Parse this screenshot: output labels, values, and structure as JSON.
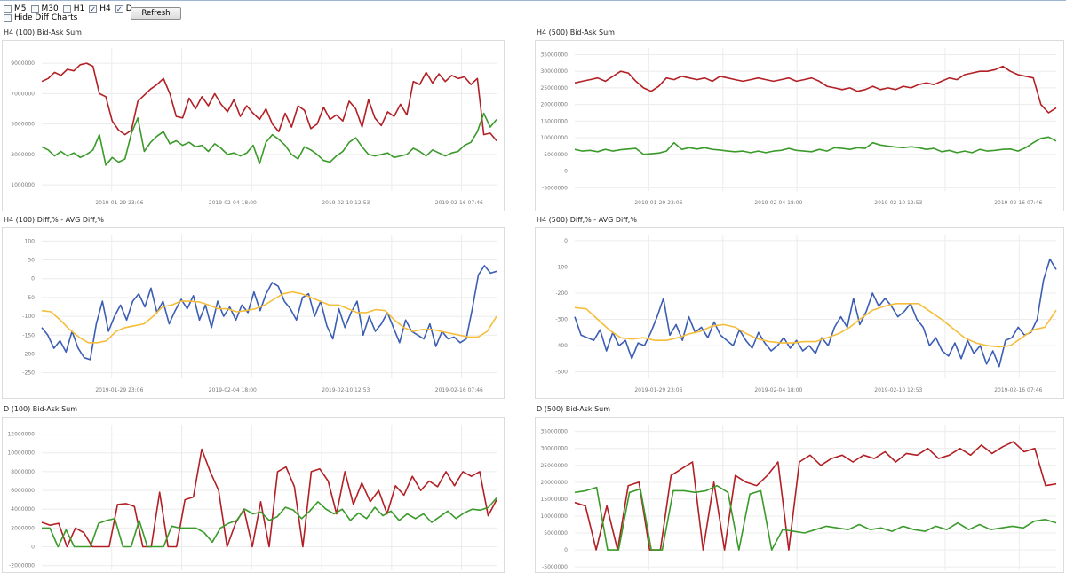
{
  "toolbar": {
    "checkboxes": [
      {
        "label": "M5",
        "checked": false
      },
      {
        "label": "M30",
        "checked": false
      },
      {
        "label": "H1",
        "checked": false
      },
      {
        "label": "H4",
        "checked": true
      },
      {
        "label": "D",
        "checked": true
      }
    ],
    "refresh_label": "Refresh",
    "hide_diff": {
      "label": "Hide Diff Charts",
      "checked": false
    }
  },
  "colors": {
    "ask": "#b21f24",
    "bid": "#3a9a2a",
    "diff": "#3b5db3",
    "avg": "#f5bd3a"
  },
  "chart_data": [
    {
      "title": "H4 (100) Bid-Ask Sum",
      "type": "line",
      "yticks": [
        9000000,
        7000000,
        5000000,
        3000000,
        1000000
      ],
      "ylim": [
        600000,
        10000000
      ],
      "xticks": [
        "2019-01-29 23:06",
        "2019-02-04 18:00",
        "2019-02-10 12:53",
        "2019-02-16 07:46"
      ],
      "series": [
        {
          "color": "#b21f24",
          "values": [
            7800000,
            8000000,
            8400000,
            8200000,
            8600000,
            8500000,
            8900000,
            9000000,
            8800000,
            7000000,
            6800000,
            5200000,
            4600000,
            4300000,
            4600000,
            6500000,
            6900000,
            7300000,
            7600000,
            8000000,
            7000000,
            5500000,
            5400000,
            6700000,
            6000000,
            6800000,
            6200000,
            7000000,
            6300000,
            5800000,
            6600000,
            5500000,
            6200000,
            5700000,
            5300000,
            6000000,
            5000000,
            4500000,
            5700000,
            4800000,
            6200000,
            5900000,
            4700000,
            5000000,
            6100000,
            5300000,
            5600000,
            5200000,
            6500000,
            6000000,
            4800000,
            6600000,
            5400000,
            4900000,
            5800000,
            5500000,
            6300000,
            5600000,
            7800000,
            7600000,
            8400000,
            7700000,
            8300000,
            7800000,
            8200000,
            8000000,
            8100000,
            7600000,
            8000000,
            4300000,
            4400000,
            3900000
          ]
        },
        {
          "color": "#3a9a2a",
          "values": [
            3500000,
            3300000,
            2900000,
            3200000,
            2900000,
            3100000,
            2800000,
            3000000,
            3300000,
            4300000,
            2300000,
            2800000,
            2500000,
            2700000,
            4400000,
            5400000,
            3200000,
            3800000,
            4200000,
            4500000,
            3700000,
            3900000,
            3600000,
            3800000,
            3500000,
            3600000,
            3200000,
            3700000,
            3400000,
            3000000,
            3100000,
            2900000,
            3100000,
            3600000,
            2400000,
            3800000,
            4300000,
            4000000,
            3600000,
            3000000,
            2700000,
            3500000,
            3300000,
            3000000,
            2600000,
            2500000,
            2900000,
            3200000,
            3800000,
            4100000,
            3500000,
            3000000,
            2900000,
            3000000,
            3100000,
            2800000,
            2900000,
            3000000,
            3400000,
            3200000,
            2900000,
            3300000,
            3100000,
            2900000,
            3100000,
            3200000,
            3600000,
            3800000,
            4500000,
            5700000,
            4800000,
            5300000
          ]
        }
      ]
    },
    {
      "title": "H4 (500) Bid-Ask Sum",
      "type": "line",
      "yticks": [
        35000000,
        30000000,
        25000000,
        20000000,
        15000000,
        10000000,
        5000000,
        0,
        -5000000
      ],
      "ylim": [
        -6000000,
        37000000
      ],
      "xticks": [
        "2019-01-29 23:06",
        "2019-02-04 18:00",
        "2019-02-10 12:53",
        "2019-02-16 07:46"
      ],
      "series": [
        {
          "color": "#b21f24",
          "values": [
            26500000,
            27000000,
            27500000,
            28000000,
            27000000,
            28500000,
            30000000,
            29500000,
            27000000,
            25000000,
            24000000,
            25500000,
            28000000,
            27500000,
            28500000,
            28000000,
            27500000,
            28000000,
            27000000,
            28500000,
            28000000,
            27500000,
            27000000,
            27500000,
            28000000,
            27500000,
            27000000,
            27500000,
            28000000,
            27000000,
            27500000,
            28000000,
            27000000,
            25500000,
            25000000,
            24500000,
            25000000,
            24000000,
            24500000,
            25500000,
            24500000,
            25000000,
            24500000,
            25500000,
            25000000,
            26000000,
            26500000,
            26000000,
            27000000,
            28000000,
            27500000,
            29000000,
            29500000,
            30000000,
            30000000,
            30500000,
            31500000,
            30000000,
            29000000,
            28500000,
            28000000,
            20000000,
            17500000,
            19000000
          ]
        },
        {
          "color": "#3a9a2a",
          "values": [
            6500000,
            6000000,
            6200000,
            5800000,
            6500000,
            6000000,
            6400000,
            6600000,
            6800000,
            5000000,
            5200000,
            5400000,
            6000000,
            8500000,
            6500000,
            7000000,
            6600000,
            7000000,
            6500000,
            6300000,
            6000000,
            5800000,
            6000000,
            5500000,
            6000000,
            5500000,
            6000000,
            6200000,
            6800000,
            6200000,
            6000000,
            5800000,
            6500000,
            6000000,
            7000000,
            6800000,
            6500000,
            7000000,
            6800000,
            8500000,
            7800000,
            7500000,
            7200000,
            7000000,
            7300000,
            7000000,
            6500000,
            6800000,
            5800000,
            6200000,
            5500000,
            6000000,
            5500000,
            6500000,
            6000000,
            6200000,
            6500000,
            6600000,
            6000000,
            7000000,
            8500000,
            9800000,
            10200000,
            9000000
          ]
        }
      ]
    },
    {
      "title": "H4 (100) Diff,% - AVG Diff,%",
      "type": "line",
      "yticks": [
        100,
        50,
        0,
        -50,
        -100,
        -150,
        -200,
        -250
      ],
      "ylim": [
        -265,
        115
      ],
      "xticks": [
        "2019-01-29 23:06",
        "2019-02-04 18:00",
        "2019-02-10 12:53",
        "2019-02-16 07:46"
      ],
      "series": [
        {
          "color": "#3b5db3",
          "values": [
            -130,
            -150,
            -185,
            -165,
            -195,
            -140,
            -185,
            -210,
            -215,
            -120,
            -60,
            -140,
            -100,
            -70,
            -110,
            -60,
            -40,
            -75,
            -25,
            -90,
            -60,
            -120,
            -85,
            -55,
            -80,
            -45,
            -110,
            -70,
            -130,
            -60,
            -100,
            -75,
            -110,
            -70,
            -90,
            -35,
            -85,
            -40,
            -10,
            -20,
            -60,
            -80,
            -110,
            -50,
            -40,
            -100,
            -60,
            -125,
            -160,
            -80,
            -130,
            -90,
            -60,
            -150,
            -100,
            -140,
            -120,
            -90,
            -130,
            -170,
            -110,
            -140,
            -150,
            -160,
            -120,
            -180,
            -140,
            -160,
            -155,
            -170,
            -160,
            -80,
            10,
            35,
            15,
            20
          ]
        },
        {
          "color": "#f5bd3a",
          "values": [
            -85,
            -88,
            -110,
            -135,
            -155,
            -170,
            -170,
            -165,
            -140,
            -130,
            -125,
            -120,
            -100,
            -75,
            -70,
            -60,
            -60,
            -62,
            -70,
            -80,
            -80,
            -88,
            -85,
            -80,
            -70,
            -55,
            -40,
            -35,
            -40,
            -50,
            -60,
            -70,
            -70,
            -80,
            -90,
            -90,
            -82,
            -85,
            -110,
            -130,
            -140,
            -135,
            -135,
            -140,
            -145,
            -150,
            -155,
            -155,
            -140,
            -100
          ]
        }
      ]
    },
    {
      "title": "H4 (500) Diff,% - AVG Diff,%",
      "type": "line",
      "yticks": [
        0,
        -100,
        -200,
        -300,
        -400,
        -500
      ],
      "ylim": [
        -525,
        20
      ],
      "xticks": [
        "2019-01-29 23:06",
        "2019-02-04 18:00",
        "2019-02-10 12:53",
        "2019-02-16 07:46"
      ],
      "series": [
        {
          "color": "#3b5db3",
          "values": [
            -290,
            -360,
            -370,
            -380,
            -340,
            -420,
            -350,
            -400,
            -380,
            -450,
            -390,
            -400,
            -350,
            -290,
            -220,
            -360,
            -320,
            -380,
            -290,
            -350,
            -330,
            -370,
            -310,
            -360,
            -380,
            -400,
            -340,
            -380,
            -410,
            -350,
            -390,
            -420,
            -400,
            -370,
            -410,
            -380,
            -420,
            -400,
            -430,
            -370,
            -400,
            -330,
            -290,
            -330,
            -220,
            -320,
            -270,
            -200,
            -250,
            -220,
            -250,
            -290,
            -270,
            -240,
            -300,
            -330,
            -400,
            -370,
            -420,
            -440,
            -390,
            -450,
            -380,
            -430,
            -400,
            -470,
            -420,
            -480,
            -380,
            -370,
            -330,
            -360,
            -350,
            -300,
            -150,
            -70,
            -110
          ]
        },
        {
          "color": "#f5bd3a",
          "values": [
            -255,
            -260,
            -300,
            -340,
            -370,
            -375,
            -370,
            -380,
            -380,
            -370,
            -355,
            -345,
            -325,
            -320,
            -330,
            -355,
            -375,
            -385,
            -390,
            -390,
            -385,
            -385,
            -370,
            -355,
            -330,
            -295,
            -265,
            -250,
            -240,
            -240,
            -240,
            -270,
            -300,
            -335,
            -370,
            -390,
            -400,
            -405,
            -400,
            -370,
            -340,
            -330,
            -265
          ]
        }
      ]
    },
    {
      "title": "D (100) Bid-Ask Sum",
      "type": "line",
      "yticks": [
        12000000,
        10000000,
        8000000,
        6000000,
        4000000,
        2000000,
        0,
        -2000000
      ],
      "ylim": [
        -2500000,
        13000000
      ],
      "xticks": [],
      "series": [
        {
          "color": "#b21f24",
          "values": [
            2600000,
            2300000,
            2500000,
            0,
            2000000,
            1500000,
            0,
            0,
            0,
            4500000,
            4600000,
            4300000,
            0,
            0,
            5800000,
            0,
            0,
            5000000,
            5300000,
            10400000,
            8000000,
            6000000,
            0,
            2500000,
            4000000,
            0,
            4800000,
            0,
            8000000,
            8500000,
            6400000,
            0,
            8000000,
            8300000,
            7000000,
            3500000,
            8000000,
            4500000,
            6800000,
            4800000,
            6000000,
            3500000,
            6500000,
            5500000,
            7500000,
            6000000,
            7000000,
            6400000,
            8000000,
            6500000,
            8000000,
            7500000,
            8000000,
            3300000,
            5000000
          ]
        },
        {
          "color": "#3a9a2a",
          "values": [
            2000000,
            2000000,
            0,
            1800000,
            0,
            0,
            0,
            2500000,
            2800000,
            3000000,
            0,
            0,
            2800000,
            0,
            0,
            0,
            2200000,
            2000000,
            2000000,
            2000000,
            1500000,
            500000,
            2000000,
            2500000,
            2800000,
            4000000,
            3500000,
            3700000,
            2800000,
            3200000,
            4200000,
            3900000,
            3000000,
            3800000,
            4800000,
            4000000,
            3500000,
            4000000,
            2800000,
            3600000,
            3000000,
            4200000,
            3300000,
            3800000,
            2800000,
            3500000,
            3000000,
            3500000,
            2600000,
            3200000,
            3800000,
            3000000,
            3600000,
            4000000,
            3900000,
            4200000,
            5200000
          ]
        }
      ]
    },
    {
      "title": "D (500) Bid-Ask Sum",
      "type": "line",
      "yticks": [
        35000000,
        30000000,
        25000000,
        20000000,
        15000000,
        10000000,
        5000000,
        0,
        -5000000
      ],
      "ylim": [
        -6000000,
        37000000
      ],
      "xticks": [],
      "series": [
        {
          "color": "#b21f24",
          "values": [
            14000000,
            13000000,
            0,
            13000000,
            0,
            19000000,
            20000000,
            0,
            0,
            22000000,
            24000000,
            26000000,
            0,
            20000000,
            0,
            22000000,
            20000000,
            19000000,
            22000000,
            26000000,
            0,
            26000000,
            28000000,
            25000000,
            27000000,
            28000000,
            26000000,
            28000000,
            27000000,
            29000000,
            26000000,
            28500000,
            28000000,
            30000000,
            27000000,
            28000000,
            30000000,
            28000000,
            31000000,
            28500000,
            30500000,
            32000000,
            29000000,
            30000000,
            19000000,
            19500000
          ]
        },
        {
          "color": "#3a9a2a",
          "values": [
            17000000,
            17500000,
            18500000,
            0,
            0,
            17000000,
            18000000,
            0,
            0,
            17500000,
            17500000,
            17000000,
            17500000,
            19000000,
            17000000,
            0,
            16500000,
            17500000,
            0,
            6000000,
            5500000,
            5000000,
            6000000,
            7000000,
            6500000,
            6000000,
            7500000,
            6000000,
            6500000,
            5500000,
            7000000,
            6000000,
            5500000,
            7000000,
            6000000,
            8000000,
            6000000,
            7500000,
            6000000,
            6500000,
            7000000,
            6500000,
            8500000,
            9000000,
            8000000
          ]
        }
      ]
    }
  ]
}
